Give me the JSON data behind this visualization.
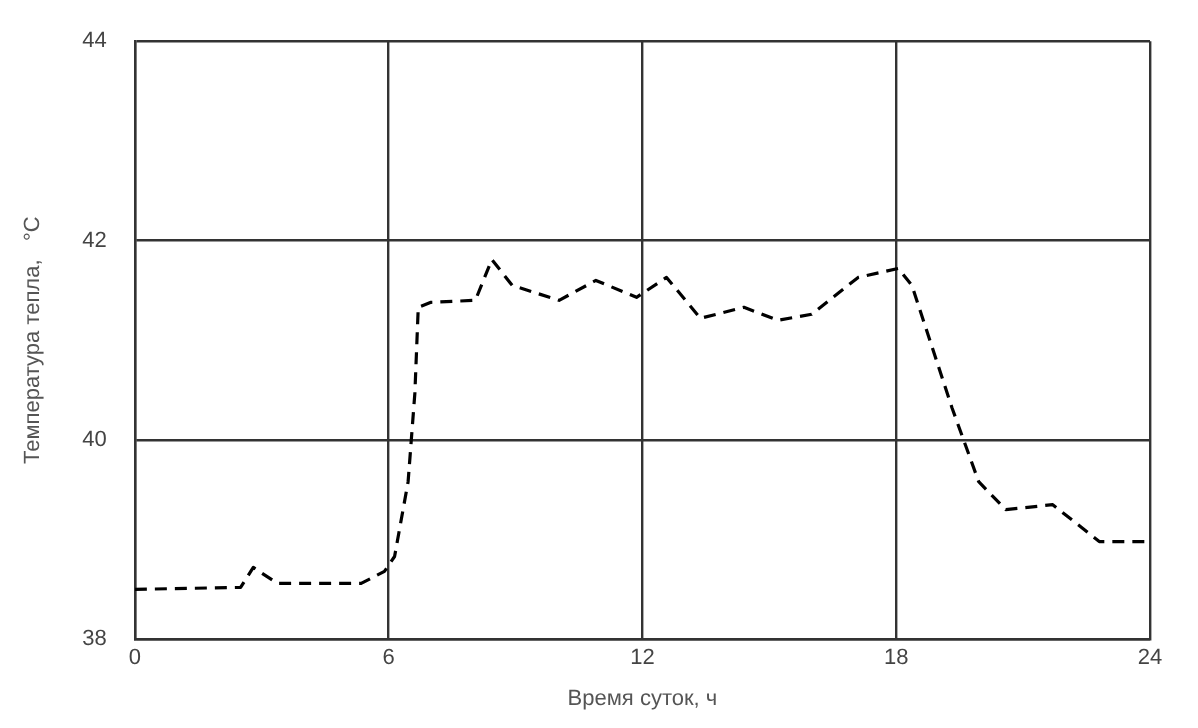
{
  "chart_data": {
    "type": "line",
    "xlabel": "Время суток, ч",
    "ylabel": "Температура тепла,   °С",
    "x": [
      0,
      2.5,
      2.8,
      3.37,
      5.35,
      5.9,
      6.14,
      6.46,
      6.62,
      6.7,
      7.0,
      8.05,
      8.44,
      8.92,
      10.03,
      10.9,
      11.86,
      12.57,
      13.37,
      14.4,
      15.2,
      16.0,
      17.1,
      18.05,
      18.37,
      19.32,
      19.95,
      20.59,
      21.7,
      22.8,
      24
    ],
    "series": [
      {
        "color": "#000000",
        "values": [
          38.5,
          38.52,
          38.72,
          38.56,
          38.56,
          38.68,
          38.83,
          39.58,
          40.47,
          41.33,
          41.38,
          41.4,
          41.81,
          41.55,
          41.4,
          41.6,
          41.43,
          41.63,
          41.22,
          41.33,
          41.2,
          41.26,
          41.63,
          41.72,
          41.55,
          40.32,
          39.58,
          39.3,
          39.35,
          38.98,
          38.98
        ]
      }
    ],
    "xlim": [
      0,
      24
    ],
    "xticks": [
      0,
      6,
      12,
      18,
      24
    ],
    "ylim": [
      38,
      44
    ],
    "yticks": [
      38,
      40,
      42,
      44
    ],
    "grid": true,
    "legend": false,
    "marker": "none",
    "line_style": "dashed"
  }
}
